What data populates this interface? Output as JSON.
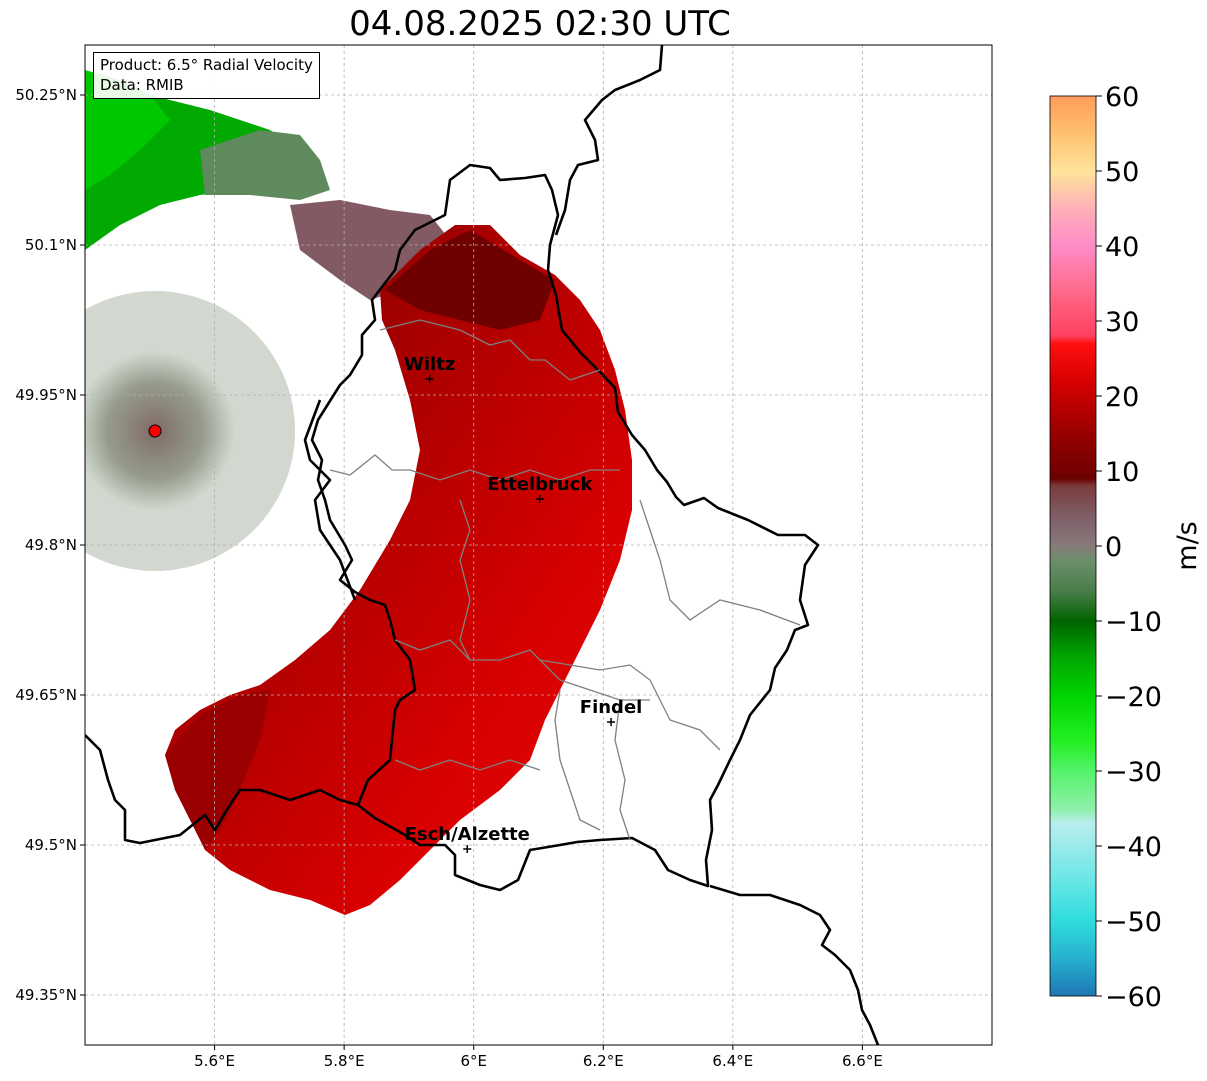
{
  "title": "04.08.2025 02:30 UTC",
  "info_box": {
    "product": "Product: 6.5° Radial Velocity",
    "data": "Data: RMIB"
  },
  "map": {
    "lon_range": [
      5.4,
      6.8
    ],
    "lat_range": [
      49.3,
      50.3
    ],
    "x_ticks": [
      {
        "value": 5.6,
        "label": "5.6°E"
      },
      {
        "value": 5.8,
        "label": "5.8°E"
      },
      {
        "value": 6.0,
        "label": "6°E"
      },
      {
        "value": 6.2,
        "label": "6.2°E"
      },
      {
        "value": 6.4,
        "label": "6.4°E"
      },
      {
        "value": 6.6,
        "label": "6.6°E"
      }
    ],
    "y_ticks": [
      {
        "value": 50.25,
        "label": "50.25°N"
      },
      {
        "value": 50.1,
        "label": "50.1°N"
      },
      {
        "value": 49.95,
        "label": "49.95°N"
      },
      {
        "value": 49.8,
        "label": "49.8°N"
      },
      {
        "value": 49.65,
        "label": "49.65°N"
      },
      {
        "value": 49.5,
        "label": "49.5°N"
      },
      {
        "value": 49.35,
        "label": "49.35°N"
      }
    ],
    "grid": true,
    "radar_site": {
      "lon": 5.505,
      "lat": 49.915
    },
    "cities": [
      {
        "name": "Wiltz",
        "lon": 5.932,
        "lat": 49.966
      },
      {
        "name": "Ettelbruck",
        "lon": 6.102,
        "lat": 49.846
      },
      {
        "name": "Findel",
        "lon": 6.212,
        "lat": 49.623
      },
      {
        "name": "Esch/Alzette",
        "lon": 5.99,
        "lat": 49.496
      }
    ]
  },
  "colorbar": {
    "unit": "m/s",
    "min": -60,
    "max": 60,
    "ticks": [
      60,
      50,
      40,
      30,
      20,
      10,
      0,
      -10,
      -20,
      -30,
      -40,
      -50,
      -60
    ],
    "tick_labels": [
      "60",
      "50",
      "40",
      "30",
      "20",
      "10",
      "0",
      "−10",
      "−20",
      "−30",
      "−40",
      "−50",
      "−60"
    ],
    "stops": [
      {
        "v": -60,
        "c": "#1f78b4"
      },
      {
        "v": -55,
        "c": "#27b0cf"
      },
      {
        "v": -50,
        "c": "#2fdcdc"
      },
      {
        "v": -45,
        "c": "#64e6e6"
      },
      {
        "v": -40,
        "c": "#9aeaea"
      },
      {
        "v": -37,
        "c": "#b8eeee"
      },
      {
        "v": -35,
        "c": "#8ef0a8"
      },
      {
        "v": -30,
        "c": "#55f26a"
      },
      {
        "v": -26,
        "c": "#22f022"
      },
      {
        "v": -20,
        "c": "#00d400"
      },
      {
        "v": -15,
        "c": "#00a800"
      },
      {
        "v": -10,
        "c": "#006400"
      },
      {
        "v": -6,
        "c": "#4a7d4a"
      },
      {
        "v": -2,
        "c": "#6b8f6b"
      },
      {
        "v": 0,
        "c": "#877a7a"
      },
      {
        "v": 4,
        "c": "#7f5d67"
      },
      {
        "v": 8,
        "c": "#7a3b3b"
      },
      {
        "v": 9,
        "c": "#6b0000"
      },
      {
        "v": 15,
        "c": "#990000"
      },
      {
        "v": 22,
        "c": "#d80000"
      },
      {
        "v": 27,
        "c": "#ff1010"
      },
      {
        "v": 28,
        "c": "#ff4060"
      },
      {
        "v": 34,
        "c": "#ff6a8a"
      },
      {
        "v": 40,
        "c": "#ff8cc8"
      },
      {
        "v": 45,
        "c": "#ffb0b8"
      },
      {
        "v": 50,
        "c": "#ffe49a"
      },
      {
        "v": 55,
        "c": "#ffc070"
      },
      {
        "v": 60,
        "c": "#ff9c5a"
      }
    ]
  },
  "colors": {
    "approaching_green": "#00b000",
    "receding_red": "#cc0000",
    "border": "#000000",
    "canton_border": "#808080"
  }
}
